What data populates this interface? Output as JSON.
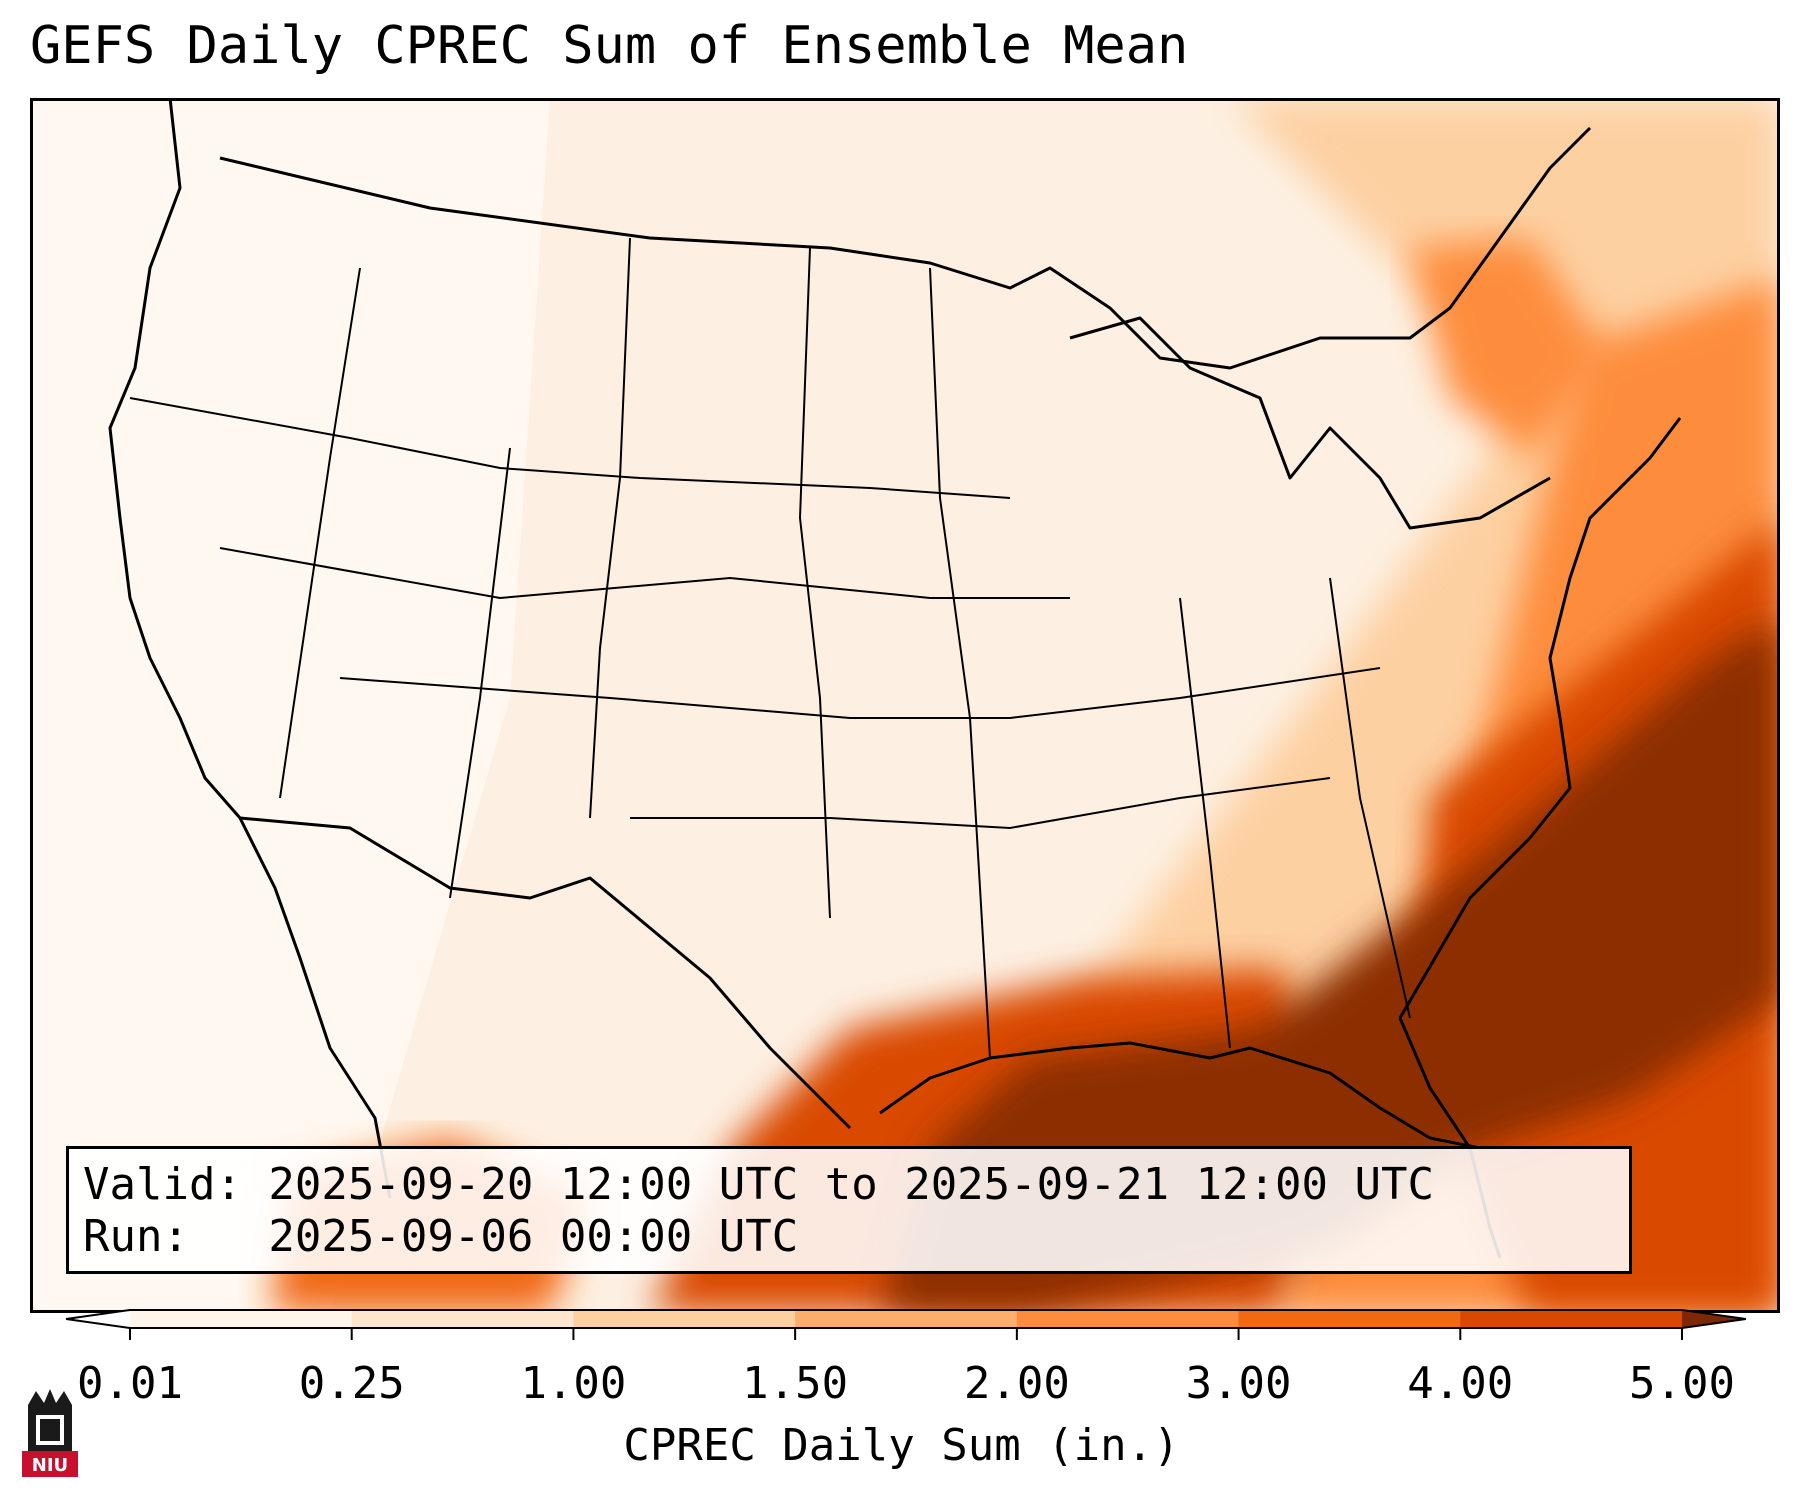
{
  "title": "GEFS Daily CPREC Sum of Ensemble Mean",
  "info": {
    "valid_line": "Valid: 2025-09-20 12:00 UTC to 2025-09-21 12:00 UTC",
    "run_line": "Run:   2025-09-06 00:00 UTC"
  },
  "colorbar": {
    "label": "CPREC Daily Sum (in.)",
    "ticks": [
      "0.01",
      "0.25",
      "1.00",
      "1.50",
      "2.00",
      "3.00",
      "4.00",
      "5.00"
    ],
    "colors": [
      "#fff5eb",
      "#fee6ce",
      "#fdd0a2",
      "#fdae6b",
      "#fd8d3c",
      "#f16913",
      "#d94801",
      "#8c2d04"
    ],
    "under_color": "#ffffff",
    "over_color": "#7f2704"
  },
  "logo": {
    "text": "NIU",
    "bg_color": "#c8102e"
  }
}
